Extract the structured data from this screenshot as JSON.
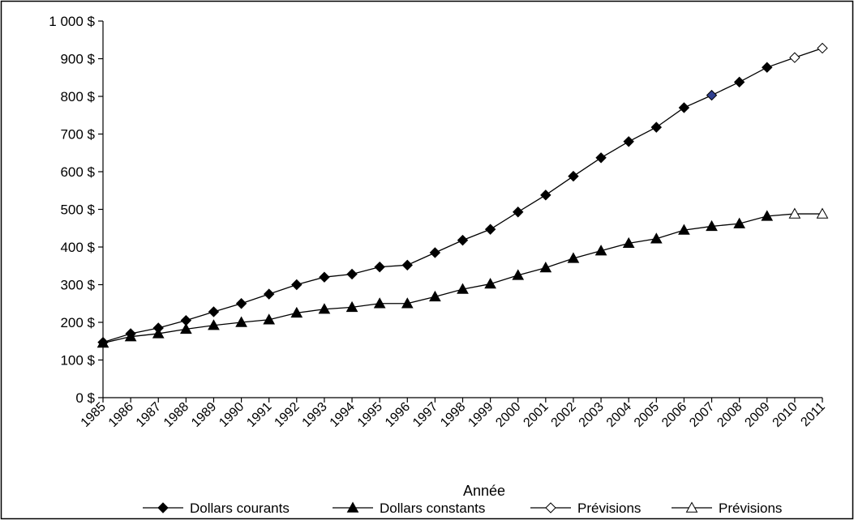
{
  "chart_data": {
    "type": "line",
    "title": "",
    "xlabel": "Année",
    "ylabel": "",
    "categories": [
      "1985",
      "1986",
      "1987",
      "1988",
      "1989",
      "1990",
      "1991",
      "1992",
      "1993",
      "1994",
      "1995",
      "1996",
      "1997",
      "1998",
      "1999",
      "2000",
      "2001",
      "2002",
      "2003",
      "2004",
      "2005",
      "2006",
      "2007",
      "2008",
      "2009",
      "2010",
      "2011"
    ],
    "y_ticks": [
      0,
      100,
      200,
      300,
      400,
      500,
      600,
      700,
      800,
      900,
      1000
    ],
    "y_tick_labels": [
      "0 $",
      "100 $",
      "200 $",
      "300 $",
      "400 $",
      "500 $",
      "600 $",
      "700 $",
      "800 $",
      "900 $",
      "1 000 $"
    ],
    "ylim": [
      0,
      1000
    ],
    "grid": false,
    "legend_position": "bottom",
    "series": [
      {
        "name": "Dollars courants",
        "marker": "diamond-filled",
        "values": [
          147,
          170,
          185,
          205,
          228,
          250,
          275,
          300,
          320,
          328,
          347,
          352,
          385,
          418,
          447,
          493,
          538,
          588,
          637,
          680,
          718,
          770,
          803,
          838,
          877,
          903,
          928
        ],
        "forecast_values": [
          null,
          null,
          null,
          null,
          null,
          null,
          null,
          null,
          null,
          null,
          null,
          null,
          null,
          null,
          null,
          null,
          null,
          null,
          null,
          null,
          null,
          null,
          null,
          null,
          877,
          903,
          928
        ],
        "highlight": {
          "category": "2007",
          "color": "#2f3f8f"
        }
      },
      {
        "name": "Dollars constants",
        "marker": "triangle-filled",
        "values": [
          145,
          162,
          170,
          182,
          192,
          200,
          207,
          225,
          235,
          240,
          250,
          250,
          268,
          288,
          302,
          325,
          345,
          370,
          390,
          410,
          422,
          445,
          455,
          462,
          482,
          488,
          488
        ],
        "forecast_values": [
          null,
          null,
          null,
          null,
          null,
          null,
          null,
          null,
          null,
          null,
          null,
          null,
          null,
          null,
          null,
          null,
          null,
          null,
          null,
          null,
          null,
          null,
          null,
          null,
          482,
          488,
          488
        ]
      }
    ],
    "legend": [
      {
        "label": "Dollars courants",
        "marker": "diamond-filled"
      },
      {
        "label": "Dollars constants",
        "marker": "triangle-filled"
      },
      {
        "label": "Prévisions",
        "marker": "diamond-open"
      },
      {
        "label": "Prévisions",
        "marker": "triangle-open"
      }
    ],
    "colors": {
      "line": "#000000",
      "frame": "#000000",
      "background": "#ffffff"
    }
  }
}
